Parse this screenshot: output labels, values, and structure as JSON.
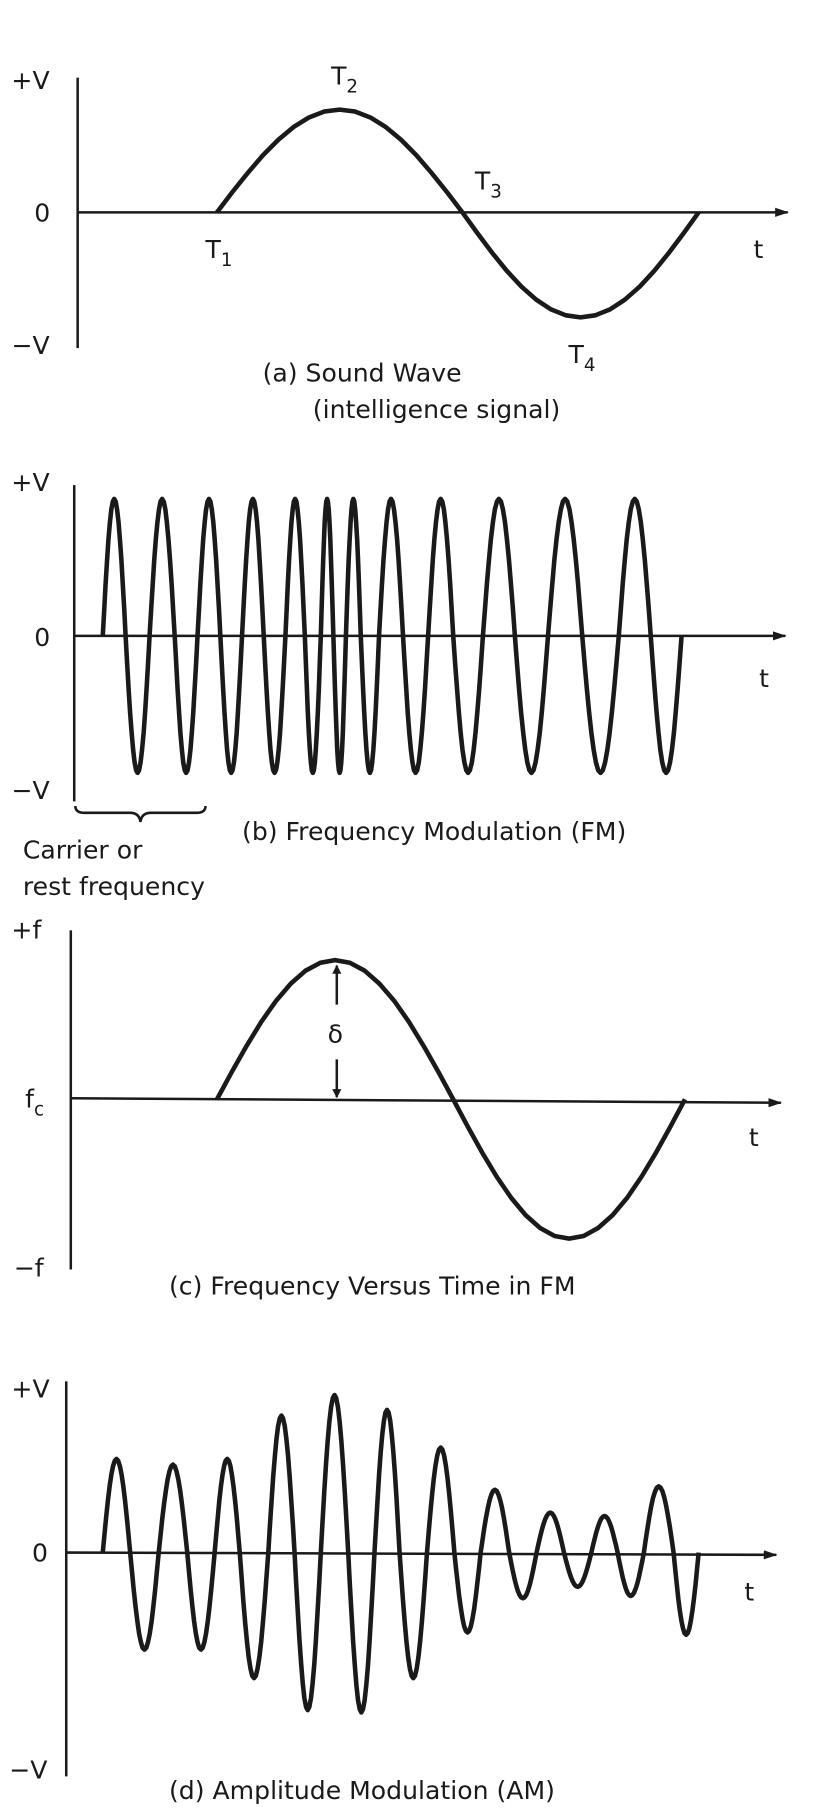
{
  "panels": [
    {
      "axis_top": "+V",
      "axis_mid": "0",
      "axis_bottom": "−V",
      "time_label": "t",
      "points": [
        {
          "base": "T",
          "sub": "1"
        },
        {
          "base": "T",
          "sub": "2"
        },
        {
          "base": "T",
          "sub": "3"
        },
        {
          "base": "T",
          "sub": "4"
        }
      ],
      "caption": [
        "(a) Sound Wave",
        "(intelligence signal)"
      ]
    },
    {
      "axis_top": "+V",
      "axis_mid": "0",
      "axis_bottom": "−V",
      "time_label": "t",
      "brace_label": [
        "Carrier or",
        "rest frequency"
      ],
      "caption": [
        "(b) Frequency Modulation (FM)"
      ]
    },
    {
      "axis_top": "+f",
      "axis_mid": {
        "base": "f",
        "sub": "c"
      },
      "axis_bottom": "−f",
      "time_label": "t",
      "deviation_label": "δ",
      "caption": [
        "(c) Frequency Versus Time in FM"
      ]
    },
    {
      "axis_top": "+V",
      "axis_mid": "0",
      "axis_bottom": "−V",
      "time_label": "t",
      "caption": [
        "(d) Amplitude Modulation (AM)"
      ]
    }
  ]
}
